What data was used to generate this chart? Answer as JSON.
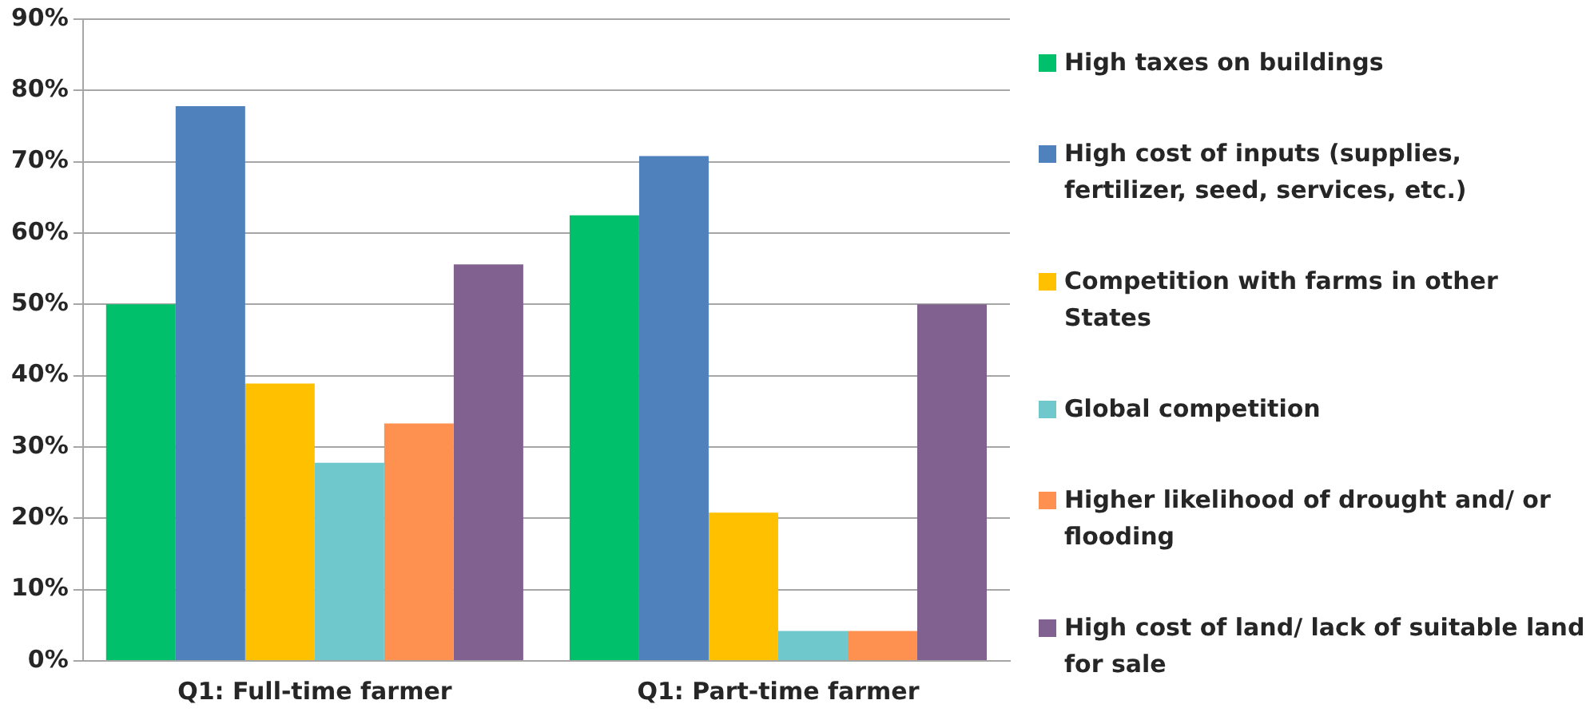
{
  "chart_data": {
    "type": "bar",
    "categories": [
      "Q1: Full-time farmer",
      "Q1: Part-time farmer"
    ],
    "series": [
      {
        "name": "High taxes on buildings",
        "color": "#00c06b",
        "values": [
          50,
          62.5
        ]
      },
      {
        "name": "High cost of inputs (supplies, fertilizer, seed, services, etc.)",
        "color": "#4f81bd",
        "values": [
          77.8,
          70.8
        ]
      },
      {
        "name": "Competition with farms in other States",
        "color": "#ffc000",
        "values": [
          38.9,
          20.8
        ]
      },
      {
        "name": "Global competition",
        "color": "#6fc9cc",
        "values": [
          27.8,
          4.2
        ]
      },
      {
        "name": "Higher likelihood of drought and/ or flooding",
        "color": "#ff9150",
        "values": [
          33.3,
          4.2
        ]
      },
      {
        "name": "High cost of land/ lack of suitable land for sale",
        "color": "#80618f",
        "values": [
          55.6,
          50
        ]
      }
    ],
    "ylim": [
      0,
      90
    ],
    "yticks": [
      {
        "value": 0,
        "label": "0%"
      },
      {
        "value": 10,
        "label": "10%"
      },
      {
        "value": 20,
        "label": "20%"
      },
      {
        "value": 30,
        "label": "30%"
      },
      {
        "value": 40,
        "label": "40%"
      },
      {
        "value": 50,
        "label": "50%"
      },
      {
        "value": 60,
        "label": "60%"
      },
      {
        "value": 70,
        "label": "70%"
      },
      {
        "value": 80,
        "label": "80%"
      },
      {
        "value": 90,
        "label": "90%"
      }
    ],
    "grid": "y",
    "legend": "right"
  }
}
